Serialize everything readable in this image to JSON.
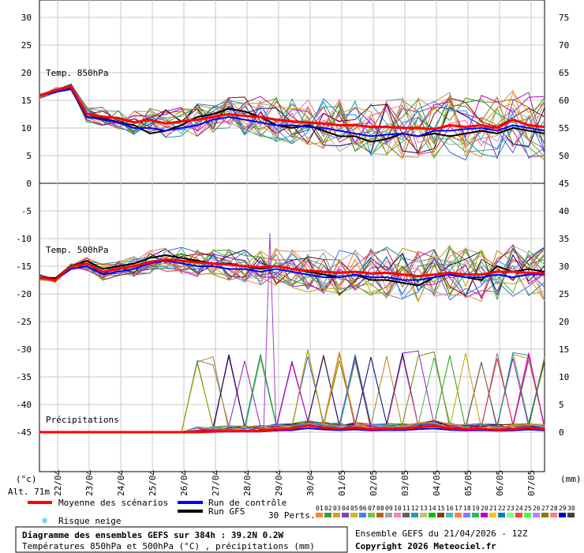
{
  "chart_data": {
    "type": "line",
    "left_axis_unit": "(°c)",
    "right_axis_unit": "(mm)",
    "altitude": "Alt. 71m",
    "dates": [
      "22/04",
      "23/04",
      "24/04",
      "25/04",
      "26/04",
      "27/04",
      "28/04",
      "29/04",
      "30/04",
      "01/05",
      "02/05",
      "03/05",
      "04/05",
      "05/05",
      "06/05",
      "07/05"
    ],
    "left_ticks": [
      "30",
      "25",
      "20",
      "15",
      "10",
      "5",
      "0",
      "-5",
      "-10",
      "-15",
      "-20",
      "-25",
      "-30",
      "-35",
      "-40",
      "-45"
    ],
    "right_ticks_top": [
      "75",
      "70",
      "65",
      "60",
      "55",
      "50"
    ],
    "right_ticks_bottom": [
      "45",
      "40",
      "35",
      "30",
      "25",
      "20",
      "15",
      "10",
      "5",
      "0"
    ],
    "panels": {
      "t850": {
        "label": "Temp. 850hPa"
      },
      "t500": {
        "label": "Temp. 500hPa"
      },
      "precip": {
        "label": "Précipitations"
      }
    },
    "x_days": [
      0,
      0.5,
      1,
      1.5,
      2,
      2.5,
      3,
      3.5,
      4,
      4.5,
      5,
      5.5,
      6,
      6.5,
      7,
      7.5,
      8,
      8.5,
      9,
      9.5,
      10,
      10.5,
      11,
      11.5,
      12,
      12.5,
      13,
      13.5,
      14,
      14.5,
      15,
      15.5,
      16
    ],
    "t850_mean": [
      15.8,
      16.8,
      17.5,
      12.5,
      12,
      11.8,
      11,
      11.5,
      10.8,
      11.2,
      11.5,
      12,
      12.5,
      12.2,
      12,
      11.5,
      11.2,
      11,
      10.8,
      10.5,
      10.5,
      10.2,
      10.2,
      10,
      10,
      9.8,
      10.5,
      10.2,
      10.5,
      10,
      11.5,
      10.5,
      10.2
    ],
    "t850_control": [
      15.8,
      16.5,
      17,
      12,
      11.5,
      11,
      10,
      10,
      9.5,
      10,
      10.5,
      11.5,
      12,
      11.5,
      11,
      10.5,
      10.5,
      10.2,
      10,
      9.5,
      9,
      8.5,
      8.8,
      9,
      8.5,
      9.5,
      9.5,
      9.8,
      10,
      9.5,
      10.5,
      10,
      9.5
    ],
    "t850_gfs": [
      15.8,
      16.5,
      17.2,
      12,
      11.8,
      11,
      10.5,
      9,
      9.5,
      10.5,
      12,
      12.5,
      13.5,
      13,
      12,
      10.5,
      10,
      10.5,
      9.5,
      8.5,
      8.5,
      7.5,
      8,
      9,
      8.5,
      9,
      8.5,
      9,
      9.5,
      9,
      10,
      9.5,
      9
    ],
    "t500_mean": [
      -17,
      -17.5,
      -15,
      -14.5,
      -16,
      -15.5,
      -15,
      -14.2,
      -13.8,
      -14,
      -14.3,
      -14.5,
      -14.7,
      -15,
      -15.2,
      -15,
      -15.5,
      -15.8,
      -16,
      -16.2,
      -16,
      -16.3,
      -16.2,
      -16.5,
      -16.8,
      -16.5,
      -16.2,
      -16.5,
      -16.5,
      -16,
      -16,
      -16.2,
      -16.3
    ],
    "t500_control": [
      -17,
      -17.5,
      -15.5,
      -15,
      -16.5,
      -16,
      -15.5,
      -14.5,
      -14,
      -14.5,
      -15,
      -15,
      -15.5,
      -15.5,
      -16,
      -15.5,
      -16,
      -16.5,
      -17,
      -17,
      -16.5,
      -17,
      -17,
      -17.5,
      -17.5,
      -17,
      -16.5,
      -17,
      -17,
      -16.5,
      -17,
      -16.5,
      -16.5
    ],
    "t500_gfs": [
      -17,
      -17.2,
      -15,
      -14,
      -15.5,
      -15,
      -14.5,
      -13.5,
      -13,
      -13.5,
      -14,
      -14.5,
      -14.5,
      -15,
      -15.5,
      -15,
      -15.5,
      -16,
      -16.5,
      -17,
      -16.5,
      -17.5,
      -17.5,
      -18,
      -18.5,
      -17,
      -16.5,
      -17,
      -17.5,
      -15,
      -16,
      -15.5,
      -16
    ],
    "precip_mm": [
      0,
      0,
      0,
      0,
      0,
      0,
      0,
      0,
      0,
      0,
      0,
      0.1,
      0.2,
      0.2,
      0.2,
      0.5,
      0.6,
      1.2,
      0.8,
      0.6,
      0.8,
      0.5,
      0.6,
      0.6,
      0.9,
      1.1,
      0.7,
      0.5,
      0.6,
      0.4,
      0.5,
      0.8,
      0.5
    ],
    "precip_spike": {
      "day": 7.3,
      "mm": 36
    },
    "series_colors": {
      "mean": "#ff0000",
      "control": "#0000ff",
      "gfs": "#000000",
      "perturbations": [
        "#808080",
        "#3cb44b",
        "#e6194b",
        "#4363d8",
        "#f58231",
        "#911eb4",
        "#46a0a0",
        "#b08020",
        "#808000",
        "#9a6324",
        "#000075",
        "#a9a9a9",
        "#00a0a0",
        "#ff69b4",
        "#7f0000",
        "#20a020",
        "#c000c0",
        "#c0a000",
        "#2080ff",
        "#dd8844"
      ]
    },
    "legend": {
      "mean": "Moyenne des scénarios",
      "control": "Run de contrôle",
      "gfs": "Run GFS",
      "snow": "Risque neige",
      "perts": "30 Perts."
    },
    "pert_numbers": [
      "01",
      "02",
      "03",
      "04",
      "05",
      "06",
      "07",
      "08",
      "09",
      "10",
      "11",
      "12",
      "13",
      "14",
      "15",
      "16",
      "17",
      "18",
      "19",
      "20",
      "21",
      "22",
      "23",
      "24",
      "25",
      "26",
      "27",
      "28",
      "29",
      "30"
    ],
    "pert_colors": [
      "#e88a3a",
      "#3aa03a",
      "#d0a020",
      "#8040c0",
      "#c0c020",
      "#4080ff",
      "#80c040",
      "#c06020",
      "#a0a0a0",
      "#ff80c0",
      "#606060",
      "#20a0a0",
      "#c0c080",
      "#00c000",
      "#804000",
      "#40c0c0",
      "#ff8040",
      "#8080ff",
      "#20c060",
      "#c000c0",
      "#ffc000",
      "#0080c0",
      "#80ff80",
      "#ff4040",
      "#40ff40",
      "#c080ff",
      "#808000",
      "#ff8080",
      "#0000c0",
      "#404040"
    ],
    "title": "Diagramme des ensembles GEFS sur 384h : 39.2N 0.2W",
    "subtitle": "Températures 850hPa et 500hPa (°C) , précipitations (mm)",
    "run_info": "Ensemble GEFS du 21/04/2026 - 12Z",
    "copyright": "Copyright 2026 Meteociel.fr"
  }
}
